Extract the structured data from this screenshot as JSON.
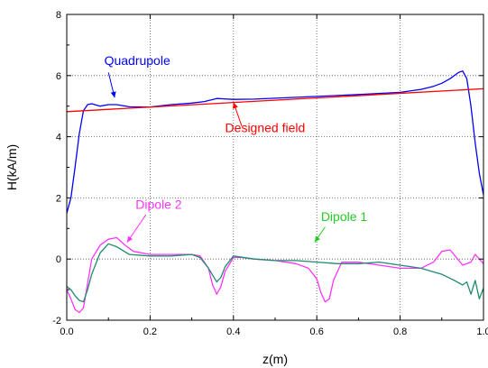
{
  "chart_data": {
    "type": "line",
    "xlabel": "z(m)",
    "ylabel": "H(kA/m)",
    "xlim": [
      0.0,
      1.0
    ],
    "ylim": [
      -2,
      8
    ],
    "xticks": [
      "0.0",
      "0.2",
      "0.4",
      "0.6",
      "0.8",
      "1.0"
    ],
    "xtick_values": [
      0.0,
      0.2,
      0.4,
      0.6,
      0.8,
      1.0
    ],
    "yticks": [
      "-2",
      "0",
      "2",
      "4",
      "6",
      "8"
    ],
    "ytick_values": [
      -2,
      0,
      2,
      4,
      6,
      8
    ],
    "grid": true,
    "series": [
      {
        "name": "Quadrupole",
        "color": "#0000ff",
        "x": [
          0.0,
          0.01,
          0.02,
          0.03,
          0.04,
          0.05,
          0.06,
          0.08,
          0.1,
          0.12,
          0.15,
          0.2,
          0.25,
          0.3,
          0.33,
          0.36,
          0.4,
          0.45,
          0.5,
          0.6,
          0.7,
          0.8,
          0.85,
          0.88,
          0.9,
          0.92,
          0.94,
          0.95,
          0.96,
          0.97,
          0.98,
          0.99,
          1.0
        ],
        "y": [
          1.5,
          2.0,
          3.0,
          4.1,
          4.85,
          5.05,
          5.08,
          5.0,
          5.05,
          5.05,
          4.98,
          4.97,
          5.05,
          5.1,
          5.15,
          5.25,
          5.22,
          5.23,
          5.26,
          5.32,
          5.38,
          5.45,
          5.55,
          5.65,
          5.75,
          5.9,
          6.1,
          6.15,
          5.9,
          5.0,
          3.8,
          2.8,
          2.1
        ]
      },
      {
        "name": "Designed field",
        "color": "#ff0000",
        "x": [
          0.0,
          1.0
        ],
        "y": [
          4.82,
          5.57
        ]
      },
      {
        "name": "Dipole 2",
        "color": "#ff33ff",
        "x": [
          0.0,
          0.01,
          0.02,
          0.03,
          0.04,
          0.05,
          0.06,
          0.08,
          0.1,
          0.12,
          0.14,
          0.16,
          0.2,
          0.25,
          0.3,
          0.32,
          0.34,
          0.35,
          0.36,
          0.37,
          0.38,
          0.4,
          0.42,
          0.45,
          0.5,
          0.55,
          0.58,
          0.6,
          0.61,
          0.62,
          0.63,
          0.64,
          0.66,
          0.7,
          0.75,
          0.8,
          0.85,
          0.88,
          0.9,
          0.92,
          0.95,
          0.97,
          0.98,
          1.0
        ],
        "y": [
          -1.0,
          -1.3,
          -1.65,
          -1.75,
          -1.6,
          -0.8,
          0.0,
          0.45,
          0.65,
          0.7,
          0.45,
          0.25,
          0.15,
          0.15,
          0.15,
          0.1,
          -0.3,
          -0.85,
          -1.15,
          -0.9,
          -0.4,
          0.05,
          0.05,
          0.0,
          -0.05,
          -0.15,
          -0.3,
          -0.65,
          -1.1,
          -1.4,
          -1.3,
          -0.7,
          -0.1,
          -0.1,
          -0.2,
          -0.3,
          -0.3,
          -0.1,
          0.25,
          0.3,
          -0.2,
          -0.1,
          0.15,
          -0.15
        ]
      },
      {
        "name": "Dipole 1",
        "color": "#1f8a6e",
        "x": [
          0.0,
          0.01,
          0.02,
          0.03,
          0.04,
          0.05,
          0.06,
          0.08,
          0.1,
          0.12,
          0.15,
          0.2,
          0.25,
          0.3,
          0.32,
          0.34,
          0.36,
          0.37,
          0.38,
          0.4,
          0.45,
          0.5,
          0.55,
          0.6,
          0.65,
          0.7,
          0.75,
          0.8,
          0.85,
          0.9,
          0.93,
          0.95,
          0.96,
          0.97,
          0.98,
          0.99,
          1.0
        ],
        "y": [
          -0.9,
          -1.0,
          -1.2,
          -1.35,
          -1.4,
          -1.0,
          -0.5,
          0.2,
          0.5,
          0.4,
          0.15,
          0.1,
          0.1,
          0.15,
          0.05,
          -0.3,
          -0.75,
          -0.6,
          -0.25,
          0.1,
          0.0,
          -0.05,
          -0.05,
          -0.1,
          -0.15,
          -0.15,
          -0.1,
          -0.2,
          -0.3,
          -0.5,
          -0.7,
          -0.85,
          -0.75,
          -1.15,
          -0.7,
          -1.3,
          -0.95
        ]
      }
    ],
    "annotations": [
      {
        "text": "Quadrupole",
        "color": "#0000ff",
        "x": 0.09,
        "y": 6.35,
        "target_x": 0.115,
        "target_y": 5.28,
        "from_x": 0.1,
        "from_y": 6.1
      },
      {
        "text": "Designed field",
        "color": "#ff0000",
        "x": 0.38,
        "y": 4.15,
        "target_x": 0.4,
        "target_y": 5.12,
        "from_x": 0.42,
        "from_y": 4.35
      },
      {
        "text": "Dipole 2",
        "color": "#ff33ff",
        "x": 0.165,
        "y": 1.65,
        "target_x": 0.145,
        "target_y": 0.55,
        "from_x": 0.19,
        "from_y": 1.45
      },
      {
        "text": "Dipole 1",
        "color": "#22cc22",
        "x": 0.61,
        "y": 1.25,
        "target_x": 0.595,
        "target_y": 0.55,
        "from_x": 0.62,
        "from_y": 1.05
      }
    ]
  }
}
